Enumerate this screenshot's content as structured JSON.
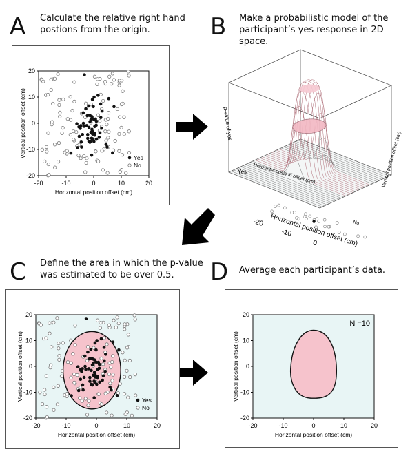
{
  "panels": {
    "a": {
      "letter": "A",
      "caption_line1": "Calculate the relative right hand",
      "caption_line2": "postions from the origin."
    },
    "b": {
      "letter": "B",
      "caption_line1": "Make a probabilistic model of the",
      "caption_line2": "participant’s yes response in 2D space."
    },
    "c": {
      "letter": "C",
      "caption_line1": "Define the area in which the p-value",
      "caption_line2": "was estimated to be over 0.5."
    },
    "d": {
      "letter": "D",
      "caption_line1": "Average each participant’s data."
    }
  },
  "plot_labels": {
    "xlabel": "Horizontal position offset (cm)",
    "ylabel": "Vertical position offset (cm)",
    "zlabel": "p-value of yes",
    "yes_axis": "Yes",
    "legend_yes": "Yes",
    "legend_no": "No",
    "n_label": "N =10"
  },
  "ticks": {
    "x": [
      "-20",
      "-10",
      "0",
      "10",
      "20"
    ],
    "y": [
      "20",
      "10",
      "0",
      "-10",
      "-20"
    ]
  },
  "colors": {
    "yes_marker": "#111111",
    "no_marker": "#777777",
    "region_fill": "#f6c3cc",
    "background_fill": "#e8f5f5",
    "arrow": "#000000"
  }
}
